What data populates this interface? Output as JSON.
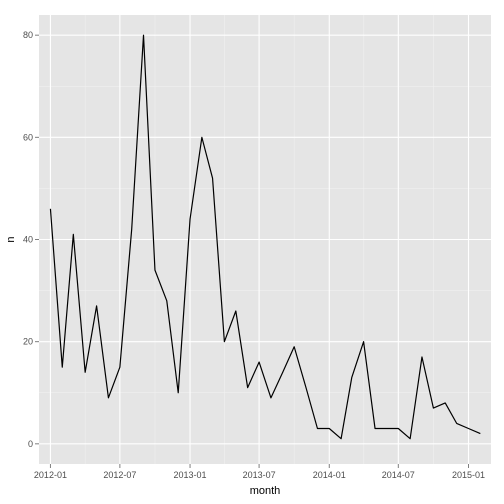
{
  "chart_data": {
    "type": "line",
    "title": "",
    "xlabel": "month",
    "ylabel": "n",
    "x": [
      "2012-01-01",
      "2012-02-01",
      "2012-03-01",
      "2012-04-01",
      "2012-05-01",
      "2012-06-01",
      "2012-07-01",
      "2012-08-01",
      "2012-09-01",
      "2012-10-01",
      "2012-11-01",
      "2012-12-01",
      "2013-01-01",
      "2013-02-01",
      "2013-03-01",
      "2013-04-01",
      "2013-05-01",
      "2013-06-01",
      "2013-07-01",
      "2013-08-01",
      "2013-09-01",
      "2013-10-01",
      "2013-11-01",
      "2013-12-01",
      "2014-01-01",
      "2014-02-01",
      "2014-03-01",
      "2014-04-01",
      "2014-05-01",
      "2014-06-01",
      "2014-07-01",
      "2014-08-01",
      "2014-09-01",
      "2014-10-01",
      "2014-11-01",
      "2014-12-01",
      "2015-01-01",
      "2015-02-01"
    ],
    "series": [
      {
        "values": [
          46,
          15,
          41,
          14,
          27,
          9,
          15,
          42,
          80,
          34,
          28,
          10,
          44,
          60,
          52,
          20,
          26,
          11,
          16,
          9,
          14,
          19,
          11,
          3,
          3,
          1,
          13,
          20,
          3,
          3,
          3,
          1,
          17,
          7,
          8,
          4,
          3,
          2
        ],
        "color": "#000000"
      }
    ],
    "xlim": [
      "2011-12-02",
      "2015-03-01"
    ],
    "ylim": [
      -3.95,
      83.95
    ],
    "x_ticks": [
      {
        "date": "2012-01-01",
        "label": "2012-01"
      },
      {
        "date": "2012-07-01",
        "label": "2012-07"
      },
      {
        "date": "2013-01-01",
        "label": "2013-01"
      },
      {
        "date": "2013-07-01",
        "label": "2013-07"
      },
      {
        "date": "2014-01-01",
        "label": "2014-01"
      },
      {
        "date": "2014-07-01",
        "label": "2014-07"
      },
      {
        "date": "2015-01-01",
        "label": "2015-01"
      }
    ],
    "y_ticks": [
      {
        "value": 0,
        "label": "0"
      },
      {
        "value": 20,
        "label": "20"
      },
      {
        "value": 40,
        "label": "40"
      },
      {
        "value": 60,
        "label": "60"
      },
      {
        "value": 80,
        "label": "80"
      }
    ],
    "grid": true,
    "legend": "none",
    "colors": {
      "panel_background": "#E5E5E5",
      "grid_major": "#FFFFFF",
      "grid_minor": "#F2F2F2",
      "tick_text": "#4D4D4D",
      "axis_title": "#000000"
    }
  }
}
